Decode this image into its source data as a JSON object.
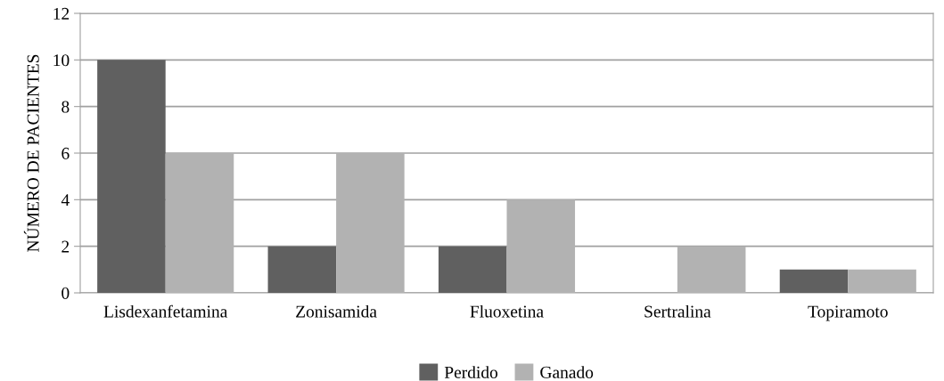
{
  "chart_data": {
    "type": "bar",
    "ylabel": "NÚMERO DE PACIENTES",
    "categories": [
      "Lisdexanfetamina",
      "Zonisamida",
      "Fluoxetina",
      "Sertralina",
      "Topiramoto"
    ],
    "series": [
      {
        "name": "Perdido",
        "color": "#606060",
        "values": [
          10,
          2,
          2,
          0,
          1
        ]
      },
      {
        "name": "Ganado",
        "color": "#b2b2b2",
        "values": [
          6,
          6,
          4,
          2,
          1
        ]
      }
    ],
    "ylim": [
      0,
      12
    ],
    "yticks": [
      0,
      2,
      4,
      6,
      8,
      10,
      12
    ],
    "grid": "y",
    "legend": "bottom"
  }
}
